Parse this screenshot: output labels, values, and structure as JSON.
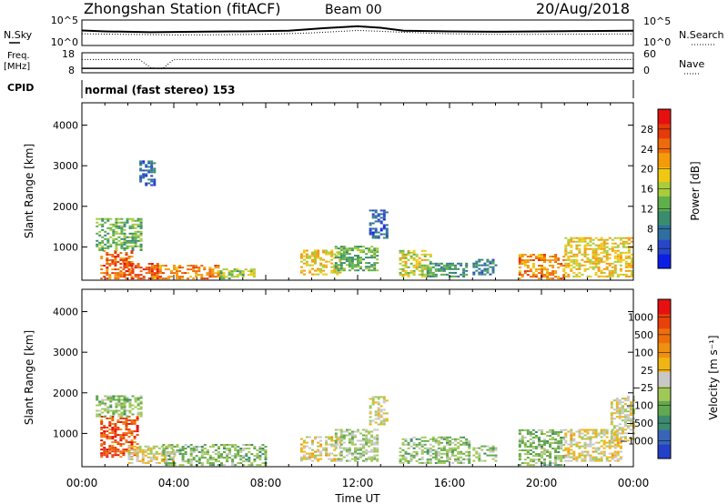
{
  "header": {
    "station": "Zhongshan Station (fitACF)",
    "beam": "Beam 00",
    "date": "20/Aug/2018"
  },
  "mode_line": "normal (fast stereo) 153",
  "side_labels": {
    "nsky": "N.Sky",
    "nsearch": "N.Search",
    "freq": "Freq.",
    "freq_unit": "[MHz]",
    "cpid": "CPID",
    "nave": "Nave"
  },
  "colors": {
    "power": [
      "#0a1ee6",
      "#2846c8",
      "#2f6fa0",
      "#3a8c6e",
      "#5fb04a",
      "#a8cc3a",
      "#f0c814",
      "#f59b0a",
      "#ee6b0c",
      "#e63a0a",
      "#e61010"
    ],
    "velocity": [
      "#2340c8",
      "#3a64b8",
      "#3c8a70",
      "#62a84e",
      "#a0c858",
      "#c8c8c8",
      "#f0b414",
      "#f09010",
      "#ee6e0c",
      "#e8420a",
      "#e61010"
    ]
  },
  "chart_data": [
    {
      "type": "line",
      "name": "noise",
      "left_ticks": [
        "10^5",
        "10^0"
      ],
      "right_ticks": [
        "10^5",
        "10^0"
      ],
      "ylim": [
        1,
        100000
      ],
      "series": [
        {
          "name": "N.Sky",
          "x": [
            0,
            1,
            3,
            5,
            7,
            9,
            10.5,
            12,
            13,
            14,
            16,
            18,
            20,
            22,
            24
          ],
          "y": [
            900,
            600,
            400,
            500,
            600,
            800,
            2500,
            6000,
            3000,
            800,
            600,
            500,
            600,
            700,
            800
          ]
        },
        {
          "name": "N.Search",
          "x": [
            0,
            2,
            4,
            6,
            8,
            10,
            12,
            14,
            16,
            18,
            20,
            22,
            24
          ],
          "y": [
            200,
            150,
            120,
            130,
            160,
            300,
            900,
            400,
            200,
            150,
            160,
            170,
            180
          ]
        }
      ]
    },
    {
      "type": "line",
      "name": "frequency",
      "left_ticks": [
        "18",
        "8"
      ],
      "right_ticks": [
        "60",
        "0"
      ],
      "freq_lim": [
        8,
        18
      ],
      "nave_lim": [
        0,
        60
      ],
      "series": [
        {
          "name": "Freq.",
          "x": [
            0,
            2.5,
            3.5,
            4,
            24
          ],
          "y": [
            10.2,
            10.2,
            10.2,
            10.2,
            10.2
          ]
        },
        {
          "name": "Nave",
          "x": [
            0,
            2.5,
            3.0,
            3.5,
            4,
            24
          ],
          "y": [
            40,
            40,
            15,
            12,
            40,
            40
          ]
        }
      ]
    },
    {
      "type": "heatmap",
      "name": "power",
      "ylabel": "Slant Range [km]",
      "yticks": [
        "1000",
        "2000",
        "3000",
        "4000"
      ],
      "ylim": [
        180,
        4550
      ],
      "xlim": [
        0,
        24
      ],
      "colorbar_label": "Power [dB]",
      "colorbar_ticks": [
        "4",
        "8",
        "12",
        "16",
        "20",
        "24",
        "28"
      ],
      "zlim": [
        0,
        30
      ],
      "patches": [
        {
          "t": [
            0.8,
            2.2
          ],
          "r": [
            200,
            900
          ],
          "z": 24
        },
        {
          "t": [
            0.6,
            2.6
          ],
          "r": [
            900,
            1700
          ],
          "z": 12
        },
        {
          "t": [
            1.8,
            3.4
          ],
          "r": [
            200,
            600
          ],
          "z": 26
        },
        {
          "t": [
            3.0,
            6.0
          ],
          "r": [
            200,
            550
          ],
          "z": 22
        },
        {
          "t": [
            6.0,
            7.5
          ],
          "r": [
            200,
            450
          ],
          "z": 14
        },
        {
          "t": [
            9.5,
            11.2
          ],
          "r": [
            300,
            900
          ],
          "z": 18
        },
        {
          "t": [
            11.0,
            12.8
          ],
          "r": [
            400,
            1000
          ],
          "z": 12
        },
        {
          "t": [
            12.5,
            13.3
          ],
          "r": [
            1200,
            1900
          ],
          "z": 6
        },
        {
          "t": [
            13.8,
            15.2
          ],
          "r": [
            250,
            900
          ],
          "z": 16
        },
        {
          "t": [
            15.0,
            16.8
          ],
          "r": [
            250,
            600
          ],
          "z": 10
        },
        {
          "t": [
            17.0,
            18.0
          ],
          "r": [
            300,
            700
          ],
          "z": 8
        },
        {
          "t": [
            19.0,
            21.0
          ],
          "r": [
            200,
            800
          ],
          "z": 22
        },
        {
          "t": [
            21.0,
            24.0
          ],
          "r": [
            250,
            1200
          ],
          "z": 18
        },
        {
          "t": [
            2.5,
            3.2
          ],
          "r": [
            2500,
            3100
          ],
          "z": 6
        }
      ]
    },
    {
      "type": "heatmap",
      "name": "velocity",
      "ylabel": "Slant Range [km]",
      "yticks": [
        "1000",
        "2000",
        "3000",
        "4000"
      ],
      "ylim": [
        180,
        4550
      ],
      "xlim": [
        0,
        24
      ],
      "xlabel": "Time UT",
      "xticks": [
        "00:00",
        "04:00",
        "08:00",
        "12:00",
        "16:00",
        "20:00",
        "00:00"
      ],
      "colorbar_label": "Velocity [m s⁻¹]",
      "colorbar_ticks": [
        "1000",
        "500",
        "100",
        "25",
        "−25",
        "−100",
        "−500",
        "−1000"
      ],
      "zlim": [
        -1200,
        1200
      ],
      "patches": [
        {
          "t": [
            0.8,
            2.4
          ],
          "r": [
            400,
            1400
          ],
          "z": 800
        },
        {
          "t": [
            0.6,
            2.6
          ],
          "r": [
            1400,
            1900
          ],
          "z": -300
        },
        {
          "t": [
            2.0,
            4.0
          ],
          "r": [
            250,
            700
          ],
          "z": 40
        },
        {
          "t": [
            3.5,
            8.0
          ],
          "r": [
            200,
            700
          ],
          "z": -300
        },
        {
          "t": [
            9.5,
            11.2
          ],
          "r": [
            300,
            900
          ],
          "z": 80
        },
        {
          "t": [
            11.0,
            12.8
          ],
          "r": [
            300,
            1100
          ],
          "z": -200
        },
        {
          "t": [
            12.5,
            13.3
          ],
          "r": [
            1200,
            1900
          ],
          "z": 0
        },
        {
          "t": [
            13.8,
            16.8
          ],
          "r": [
            250,
            900
          ],
          "z": -300
        },
        {
          "t": [
            17.0,
            18.0
          ],
          "r": [
            300,
            700
          ],
          "z": -300
        },
        {
          "t": [
            19.0,
            21.0
          ],
          "r": [
            200,
            1100
          ],
          "z": -300
        },
        {
          "t": [
            21.0,
            23.5
          ],
          "r": [
            300,
            1100
          ],
          "z": 60
        },
        {
          "t": [
            23.0,
            24.0
          ],
          "r": [
            800,
            1900
          ],
          "z": 0
        }
      ]
    }
  ]
}
